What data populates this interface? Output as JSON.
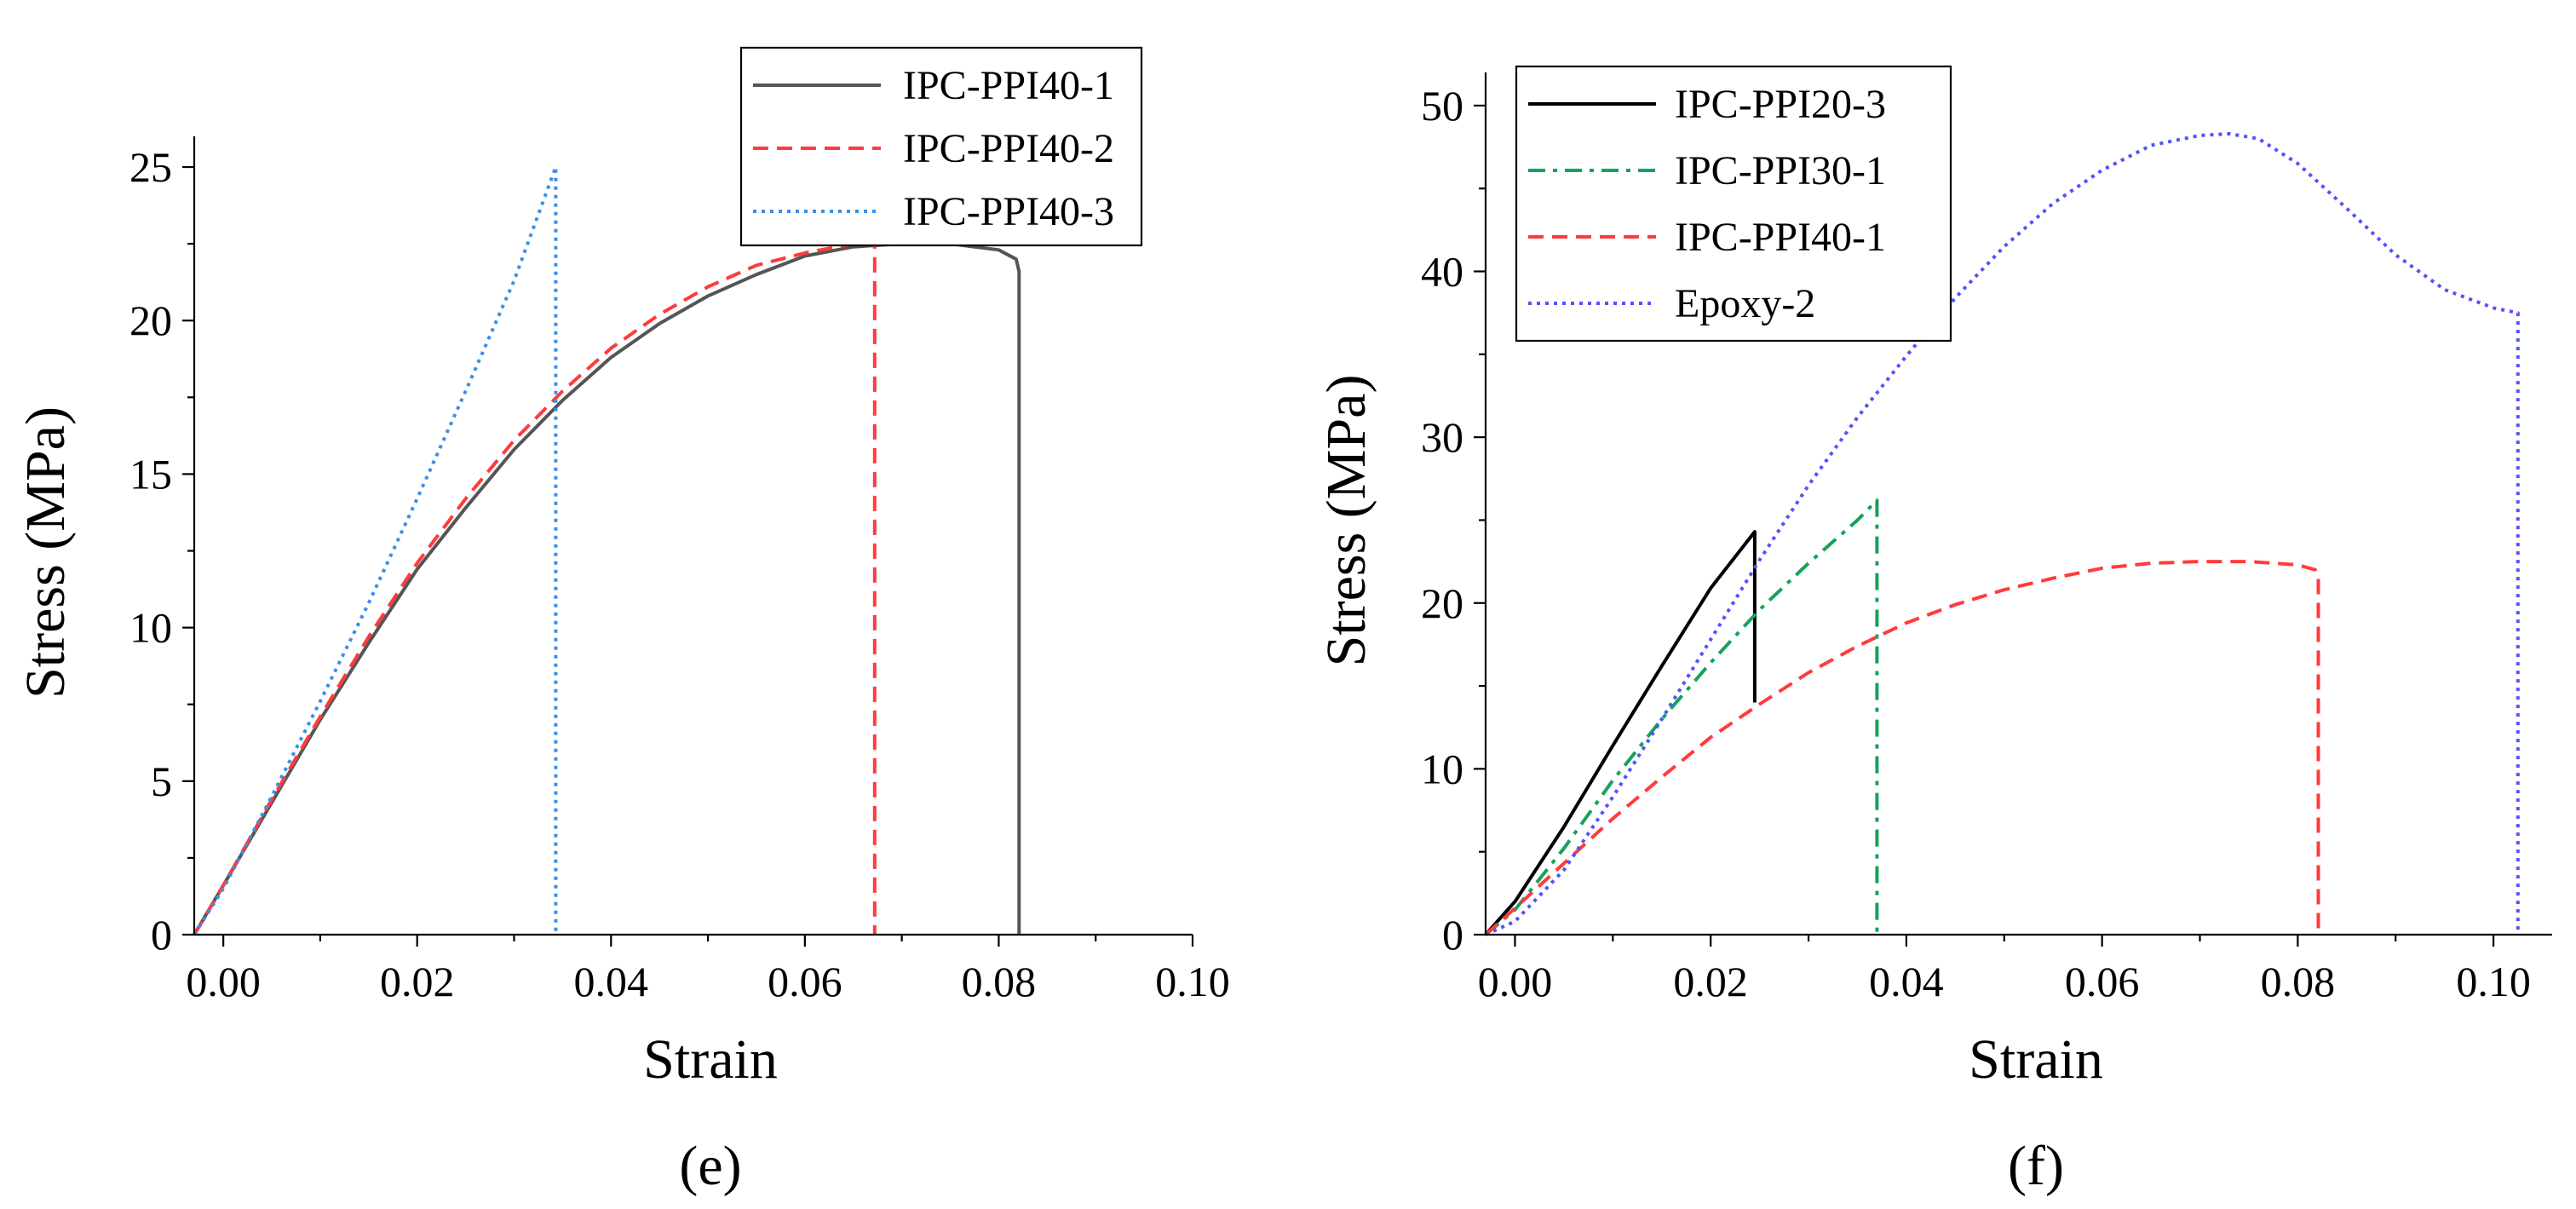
{
  "chart_data": [
    {
      "type": "line",
      "panel_label": "(e)",
      "xlabel": "Strain",
      "ylabel": "Stress (MPa)",
      "xlim": [
        -0.003,
        0.1
      ],
      "ylim": [
        0,
        26
      ],
      "xticks": [
        "0.00",
        "0.02",
        "0.04",
        "0.06",
        "0.08",
        "0.10"
      ],
      "yticks": [
        "0",
        "5",
        "10",
        "15",
        "20",
        "25"
      ],
      "legend_position": "top-right",
      "series": [
        {
          "name": "IPC-PPI40-1",
          "color": "#555555",
          "dash": "solid",
          "x": [
            -0.003,
            0.0,
            0.005,
            0.01,
            0.015,
            0.02,
            0.025,
            0.03,
            0.035,
            0.04,
            0.045,
            0.05,
            0.055,
            0.06,
            0.065,
            0.07,
            0.075,
            0.08,
            0.0818,
            0.0821,
            0.0821
          ],
          "y": [
            0,
            1.6,
            4.3,
            7.0,
            9.5,
            11.9,
            13.9,
            15.8,
            17.4,
            18.8,
            19.9,
            20.8,
            21.5,
            22.1,
            22.4,
            22.5,
            22.5,
            22.3,
            22.0,
            21.6,
            0
          ]
        },
        {
          "name": "IPC-PPI40-2",
          "color": "#ff3b3b",
          "dash": "dashed",
          "x": [
            -0.003,
            0.0,
            0.005,
            0.01,
            0.015,
            0.02,
            0.025,
            0.03,
            0.035,
            0.04,
            0.045,
            0.05,
            0.055,
            0.06,
            0.065,
            0.0672,
            0.0672
          ],
          "y": [
            0,
            1.6,
            4.4,
            7.1,
            9.7,
            12.1,
            14.2,
            16.1,
            17.7,
            19.1,
            20.2,
            21.1,
            21.8,
            22.2,
            22.5,
            22.5,
            0
          ]
        },
        {
          "name": "IPC-PPI40-3",
          "color": "#3a8fe8",
          "dash": "dotted",
          "x": [
            -0.003,
            0.0,
            0.005,
            0.01,
            0.015,
            0.02,
            0.025,
            0.03,
            0.0343,
            0.0343
          ],
          "y": [
            0,
            1.5,
            4.5,
            7.6,
            10.8,
            14.2,
            17.7,
            21.3,
            25.0,
            0
          ]
        }
      ]
    },
    {
      "type": "line",
      "panel_label": "(f)",
      "xlabel": "Strain",
      "ylabel": "Stress (MPa)",
      "xlim": [
        -0.003,
        0.106
      ],
      "ylim": [
        0,
        52
      ],
      "xticks": [
        "0.00",
        "0.02",
        "0.04",
        "0.06",
        "0.08",
        "0.10"
      ],
      "yticks": [
        "0",
        "10",
        "20",
        "30",
        "40",
        "50"
      ],
      "legend_position": "top-left",
      "series": [
        {
          "name": "IPC-PPI20-3",
          "color": "#000000",
          "dash": "solid",
          "x": [
            -0.003,
            0.0,
            0.005,
            0.01,
            0.015,
            0.02,
            0.0245,
            0.0245
          ],
          "y": [
            0,
            2.0,
            6.5,
            11.4,
            16.2,
            20.9,
            24.3,
            14.0
          ]
        },
        {
          "name": "IPC-PPI30-1",
          "color": "#14a35a",
          "dash": "dashdot",
          "x": [
            -0.003,
            0.0,
            0.005,
            0.01,
            0.015,
            0.02,
            0.025,
            0.03,
            0.035,
            0.037,
            0.037
          ],
          "y": [
            0,
            1.5,
            5.2,
            9.3,
            13.0,
            16.4,
            19.6,
            22.4,
            25.0,
            26.2,
            0
          ]
        },
        {
          "name": "IPC-PPI40-1",
          "color": "#ff3b3b",
          "dash": "dashed",
          "x": [
            -0.003,
            0.0,
            0.005,
            0.01,
            0.015,
            0.02,
            0.025,
            0.03,
            0.035,
            0.04,
            0.045,
            0.05,
            0.055,
            0.06,
            0.065,
            0.07,
            0.075,
            0.08,
            0.0818,
            0.0821,
            0.0821
          ],
          "y": [
            0,
            1.6,
            4.3,
            7.0,
            9.5,
            11.9,
            13.9,
            15.8,
            17.4,
            18.8,
            19.9,
            20.8,
            21.5,
            22.1,
            22.4,
            22.5,
            22.5,
            22.3,
            22.0,
            21.6,
            0
          ]
        },
        {
          "name": "Epoxy-2",
          "color": "#5252ff",
          "dash": "dotted",
          "x": [
            -0.003,
            0.0,
            0.005,
            0.01,
            0.015,
            0.02,
            0.025,
            0.03,
            0.035,
            0.04,
            0.045,
            0.05,
            0.055,
            0.06,
            0.065,
            0.07,
            0.073,
            0.076,
            0.08,
            0.085,
            0.09,
            0.095,
            0.1,
            0.1025,
            0.1025
          ],
          "y": [
            0,
            0.8,
            3.9,
            8.3,
            13.0,
            17.8,
            22.6,
            27.1,
            31.2,
            34.9,
            38.4,
            41.5,
            44.1,
            46.1,
            47.6,
            48.2,
            48.3,
            48.0,
            46.5,
            43.8,
            41.0,
            38.9,
            37.8,
            37.5,
            0
          ]
        }
      ]
    }
  ]
}
